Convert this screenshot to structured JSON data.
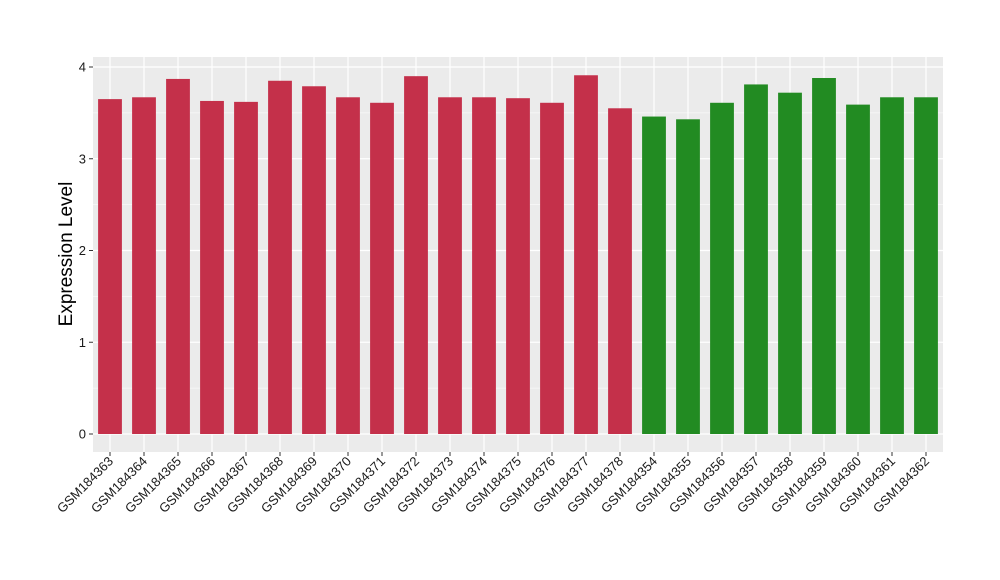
{
  "chart_data": {
    "type": "bar",
    "title": "",
    "xlabel": "",
    "ylabel": "Expression Level",
    "ylim": [
      0,
      4
    ],
    "yticks": [
      0,
      1,
      2,
      3,
      4
    ],
    "grid": true,
    "background_color": "#EBEBEB",
    "grid_color": "#FFFFFF",
    "colors": {
      "group_a": "#C4304A",
      "group_b": "#228B22"
    },
    "categories": [
      "GSM184363",
      "GSM184364",
      "GSM184365",
      "GSM184366",
      "GSM184367",
      "GSM184368",
      "GSM184369",
      "GSM184370",
      "GSM184371",
      "GSM184372",
      "GSM184373",
      "GSM184374",
      "GSM184375",
      "GSM184376",
      "GSM184377",
      "GSM184378",
      "GSM184354",
      "GSM184355",
      "GSM184356",
      "GSM184357",
      "GSM184358",
      "GSM184359",
      "GSM184360",
      "GSM184361",
      "GSM184362"
    ],
    "values": [
      3.65,
      3.67,
      3.87,
      3.63,
      3.62,
      3.85,
      3.79,
      3.67,
      3.61,
      3.9,
      3.67,
      3.67,
      3.66,
      3.61,
      3.91,
      3.55,
      3.46,
      3.43,
      3.61,
      3.81,
      3.72,
      3.88,
      3.59,
      3.67,
      3.67
    ],
    "bar_groups": [
      "group_a",
      "group_a",
      "group_a",
      "group_a",
      "group_a",
      "group_a",
      "group_a",
      "group_a",
      "group_a",
      "group_a",
      "group_a",
      "group_a",
      "group_a",
      "group_a",
      "group_a",
      "group_a",
      "group_b",
      "group_b",
      "group_b",
      "group_b",
      "group_b",
      "group_b",
      "group_b",
      "group_b",
      "group_b"
    ]
  }
}
